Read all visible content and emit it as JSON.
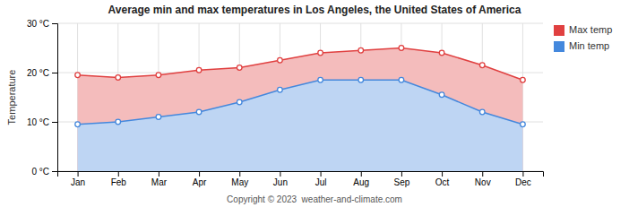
{
  "chart_data": {
    "type": "area",
    "title": "Average min and max temperatures in Los Angeles, the United States of America",
    "annotations": [
      "Copyright © 2023  weather-and-climate.com"
    ],
    "y_label": "Temperature",
    "categories": [
      "Jan",
      "Feb",
      "Mar",
      "Apr",
      "May",
      "Jun",
      "Jul",
      "Aug",
      "Sep",
      "Oct",
      "Nov",
      "Dec"
    ],
    "series": [
      {
        "name": "Max temp",
        "color": "#e04040",
        "marker": "circle",
        "values": [
          19.5,
          19.0,
          19.5,
          20.5,
          21.0,
          22.5,
          24.0,
          24.5,
          25.0,
          24.0,
          21.5,
          18.5
        ]
      },
      {
        "name": "Min temp",
        "color": "#4488dd",
        "marker": "circle",
        "values": [
          9.5,
          10.0,
          11.0,
          12.0,
          14.0,
          16.5,
          18.5,
          18.5,
          18.5,
          15.5,
          12.0,
          9.5
        ]
      }
    ],
    "ylim": [
      0,
      30
    ],
    "yticks": [
      {
        "value": 0,
        "label": "0 °C"
      },
      {
        "value": 10,
        "label": "10 °C"
      },
      {
        "value": 20,
        "label": "20 °C"
      },
      {
        "value": 30,
        "label": "30 °C"
      }
    ],
    "grid": true,
    "legend": "right"
  }
}
